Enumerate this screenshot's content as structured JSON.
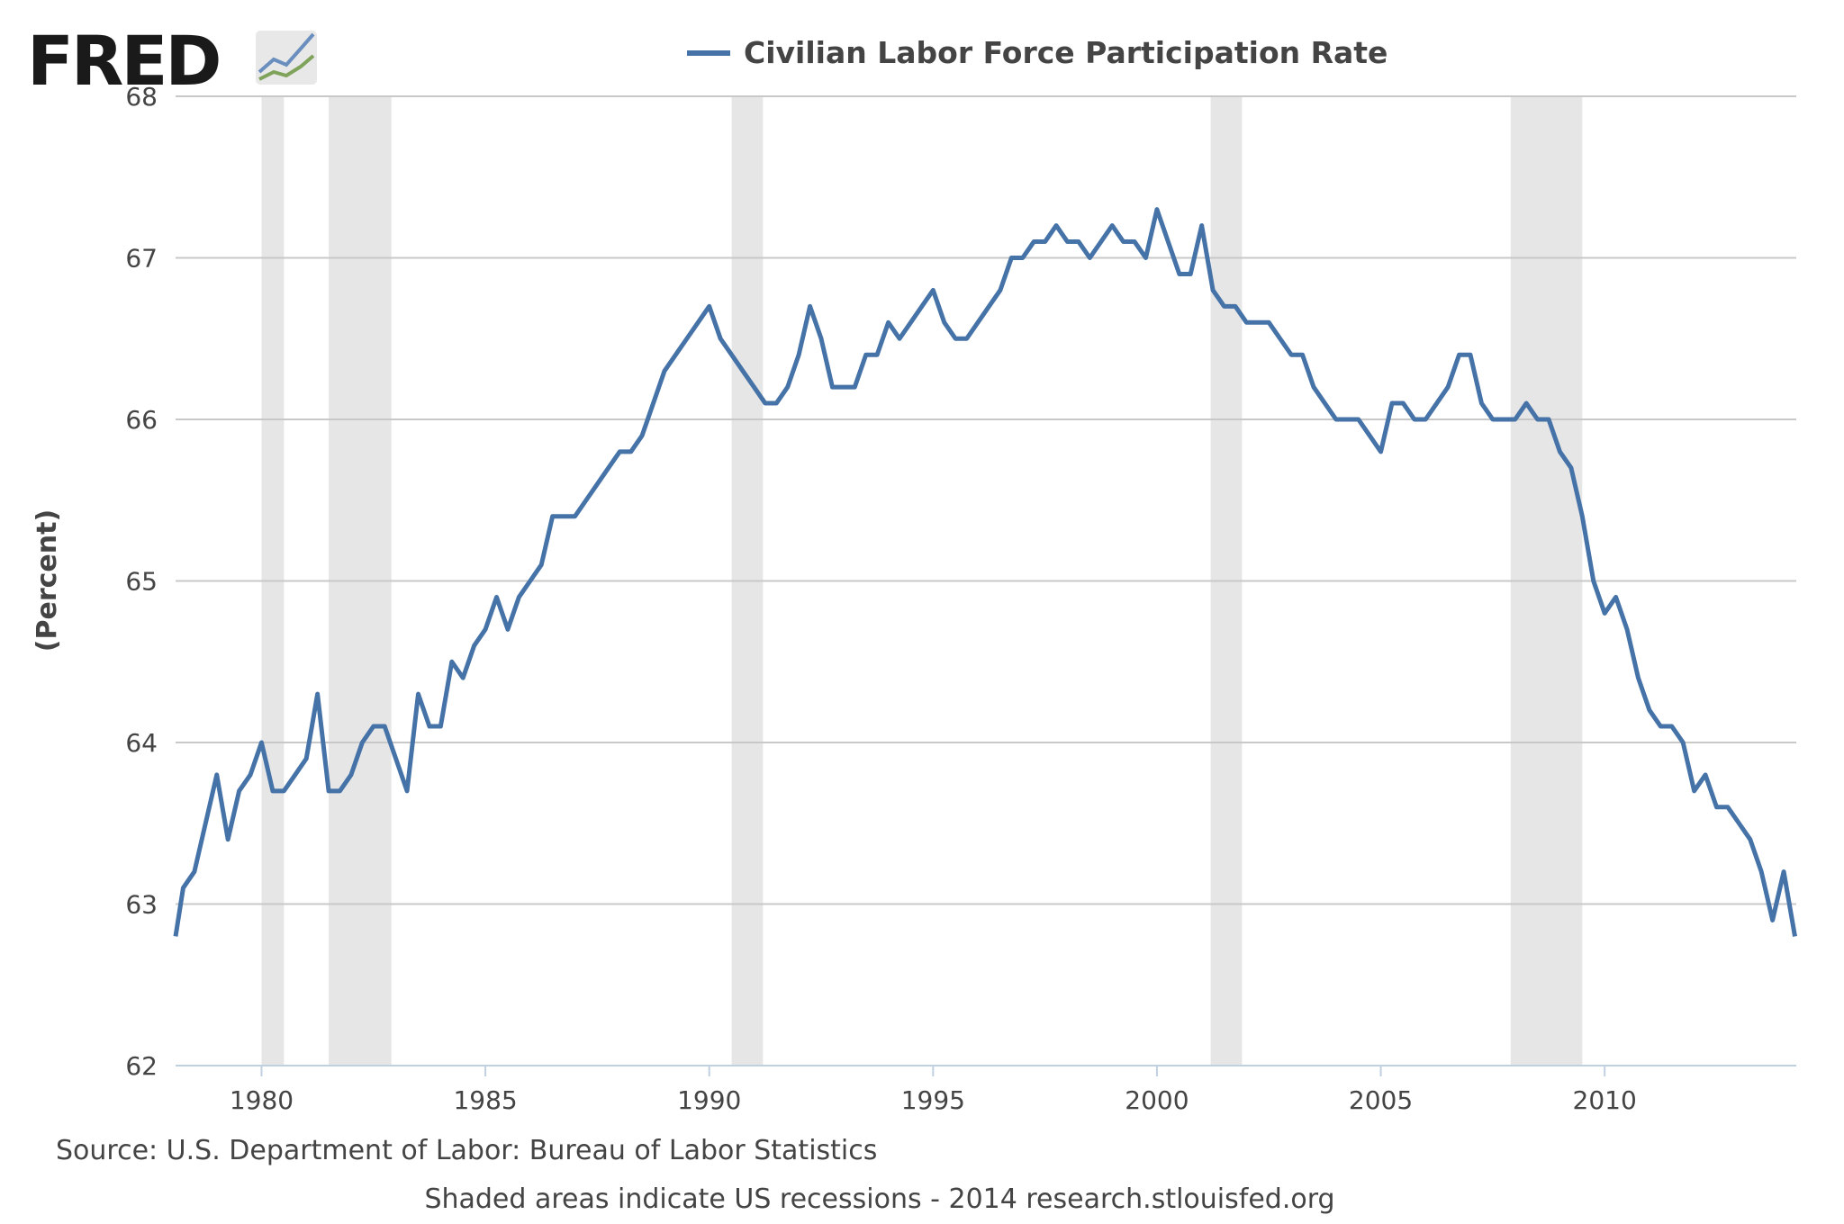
{
  "chart_data": {
    "type": "line",
    "logo": "FRED",
    "ylabel": "(Percent)",
    "source": "Source: U.S. Department of Labor: Bureau of Labor Statistics",
    "footer": "Shaded areas indicate US recessions - 2014 research.stlouisfed.org",
    "xlim": [
      1978.08,
      2014.28
    ],
    "ylim": [
      62,
      68
    ],
    "xticks": [
      1980,
      1985,
      1990,
      1995,
      2000,
      2005,
      2010
    ],
    "yticks": [
      62,
      63,
      64,
      65,
      66,
      67,
      68
    ],
    "grid": true,
    "recessions": [
      [
        1980.0,
        1980.5
      ],
      [
        1981.5,
        1982.9
      ],
      [
        1990.5,
        1991.2
      ],
      [
        2001.2,
        2001.9
      ],
      [
        2007.9,
        2009.5
      ]
    ],
    "recession_color": "#e6e6e6",
    "x": [
      1978.08,
      1978.25,
      1978.5,
      1978.75,
      1979,
      1979.25,
      1979.5,
      1979.75,
      1980,
      1980.25,
      1980.5,
      1980.75,
      1981,
      1981.25,
      1981.5,
      1981.75,
      1982,
      1982.25,
      1982.5,
      1982.75,
      1983,
      1983.25,
      1983.5,
      1983.75,
      1984,
      1984.25,
      1984.5,
      1984.75,
      1985,
      1985.25,
      1985.5,
      1985.75,
      1986,
      1986.25,
      1986.5,
      1986.75,
      1987,
      1987.25,
      1987.5,
      1987.75,
      1988,
      1988.25,
      1988.5,
      1988.75,
      1989,
      1989.25,
      1989.5,
      1989.75,
      1990,
      1990.25,
      1990.5,
      1990.75,
      1991,
      1991.25,
      1991.5,
      1991.75,
      1992,
      1992.25,
      1992.5,
      1992.75,
      1993,
      1993.25,
      1993.5,
      1993.75,
      1994,
      1994.25,
      1994.5,
      1994.75,
      1995,
      1995.25,
      1995.5,
      1995.75,
      1996,
      1996.25,
      1996.5,
      1996.75,
      1997,
      1997.25,
      1997.5,
      1997.75,
      1998,
      1998.25,
      1998.5,
      1998.75,
      1999,
      1999.25,
      1999.5,
      1999.75,
      2000,
      2000.25,
      2000.5,
      2000.75,
      2001,
      2001.25,
      2001.5,
      2001.75,
      2002,
      2002.25,
      2002.5,
      2002.75,
      2003,
      2003.25,
      2003.5,
      2003.75,
      2004,
      2004.25,
      2004.5,
      2004.75,
      2005,
      2005.25,
      2005.5,
      2005.75,
      2006,
      2006.25,
      2006.5,
      2006.75,
      2007,
      2007.25,
      2007.5,
      2007.75,
      2008,
      2008.25,
      2008.5,
      2008.75,
      2009,
      2009.25,
      2009.5,
      2009.75,
      2010,
      2010.25,
      2010.5,
      2010.75,
      2011,
      2011.25,
      2011.5,
      2011.75,
      2012,
      2012.25,
      2012.5,
      2012.75,
      2013,
      2013.25,
      2013.5,
      2013.75,
      2014,
      2014.25
    ],
    "series": [
      {
        "name": "Civilian Labor Force Participation Rate",
        "color": "#4572a7",
        "values": [
          62.8,
          63.1,
          63.2,
          63.5,
          63.8,
          63.4,
          63.7,
          63.8,
          64.0,
          63.7,
          63.7,
          63.8,
          63.9,
          64.3,
          63.7,
          63.7,
          63.8,
          64.0,
          64.1,
          64.1,
          63.9,
          63.7,
          64.3,
          64.1,
          64.1,
          64.5,
          64.4,
          64.6,
          64.7,
          64.9,
          64.7,
          64.9,
          65.0,
          65.1,
          65.4,
          65.4,
          65.4,
          65.5,
          65.6,
          65.7,
          65.8,
          65.8,
          65.9,
          66.1,
          66.3,
          66.4,
          66.5,
          66.6,
          66.7,
          66.5,
          66.4,
          66.3,
          66.2,
          66.1,
          66.1,
          66.2,
          66.4,
          66.7,
          66.5,
          66.2,
          66.2,
          66.2,
          66.4,
          66.4,
          66.6,
          66.5,
          66.6,
          66.7,
          66.8,
          66.6,
          66.5,
          66.5,
          66.6,
          66.7,
          66.8,
          67.0,
          67.0,
          67.1,
          67.1,
          67.2,
          67.1,
          67.1,
          67.0,
          67.1,
          67.2,
          67.1,
          67.1,
          67.0,
          67.3,
          67.1,
          66.9,
          66.9,
          67.2,
          66.8,
          66.7,
          66.7,
          66.6,
          66.6,
          66.6,
          66.5,
          66.4,
          66.4,
          66.2,
          66.1,
          66.0,
          66.0,
          66.0,
          65.9,
          65.8,
          66.1,
          66.1,
          66.0,
          66.0,
          66.1,
          66.2,
          66.4,
          66.4,
          66.1,
          66.0,
          66.0,
          66.0,
          66.1,
          66.0,
          66.0,
          65.8,
          65.7,
          65.4,
          65.0,
          64.8,
          64.9,
          64.7,
          64.4,
          64.2,
          64.1,
          64.1,
          64.0,
          63.7,
          63.8,
          63.6,
          63.6,
          63.5,
          63.4,
          63.2,
          62.9,
          63.2,
          62.8
        ]
      }
    ]
  }
}
